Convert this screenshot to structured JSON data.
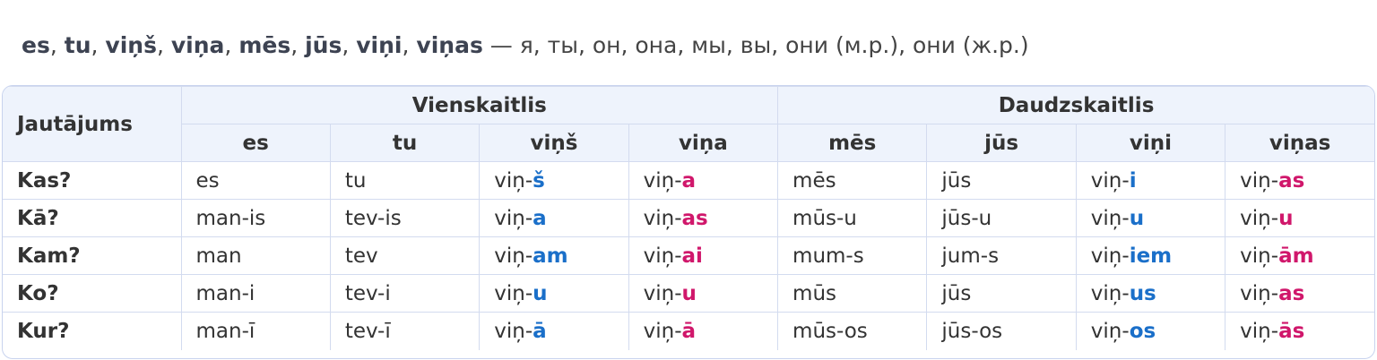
{
  "intro": {
    "pronouns": [
      "es",
      "tu",
      "viņš",
      "viņa",
      "mēs",
      "jūs",
      "viņi",
      "viņas"
    ],
    "separator": ",",
    "translation": "— я, ты, он, она, мы, вы, они (м.р.), они (ж.р.)"
  },
  "table": {
    "header": "Jautājums",
    "groups": [
      {
        "label": "Vienskaitlis",
        "span": 4
      },
      {
        "label": "Daudzskaitlis",
        "span": 4
      }
    ],
    "columns": [
      "es",
      "tu",
      "viņš",
      "viņa",
      "mēs",
      "jūs",
      "viņi",
      "viņas"
    ],
    "rows": [
      {
        "question": "Kas?",
        "cells": [
          "es",
          "tu",
          {
            "stem": "viņ-",
            "ending": "š",
            "color": "#1a6fc9"
          },
          {
            "stem": "viņ-",
            "ending": "a",
            "color": "#d0176b"
          },
          "mēs",
          "jūs",
          {
            "stem": "viņ-",
            "ending": "i",
            "color": "#1a6fc9"
          },
          {
            "stem": "viņ-",
            "ending": "as",
            "color": "#d0176b"
          }
        ]
      },
      {
        "question": "Kā?",
        "cells": [
          "man-is",
          "tev-is",
          {
            "stem": "viņ-",
            "ending": "a",
            "color": "#1a6fc9"
          },
          {
            "stem": "viņ-",
            "ending": "as",
            "color": "#d0176b"
          },
          "mūs-u",
          "jūs-u",
          {
            "stem": "viņ-",
            "ending": "u",
            "color": "#1a6fc9"
          },
          {
            "stem": "viņ-",
            "ending": "u",
            "color": "#d0176b"
          }
        ]
      },
      {
        "question": "Kam?",
        "cells": [
          "man",
          "tev",
          {
            "stem": "viņ-",
            "ending": "am",
            "color": "#1a6fc9"
          },
          {
            "stem": "viņ-",
            "ending": "ai",
            "color": "#d0176b"
          },
          "mum-s",
          "jum-s",
          {
            "stem": "viņ-",
            "ending": "iem",
            "color": "#1a6fc9"
          },
          {
            "stem": "viņ-",
            "ending": "ām",
            "color": "#d0176b"
          }
        ]
      },
      {
        "question": "Ko?",
        "cells": [
          "man-i",
          "tev-i",
          {
            "stem": "viņ-",
            "ending": "u",
            "color": "#1a6fc9"
          },
          {
            "stem": "viņ-",
            "ending": "u",
            "color": "#d0176b"
          },
          "mūs",
          "jūs",
          {
            "stem": "viņ-",
            "ending": "us",
            "color": "#1a6fc9"
          },
          {
            "stem": "viņ-",
            "ending": "as",
            "color": "#d0176b"
          }
        ]
      },
      {
        "question": "Kur?",
        "cells": [
          "man-ī",
          "tev-ī",
          {
            "stem": "viņ-",
            "ending": "ā",
            "color": "#1a6fc9"
          },
          {
            "stem": "viņ-",
            "ending": "ā",
            "color": "#d0176b"
          },
          "mūs-os",
          "jūs-os",
          {
            "stem": "viņ-",
            "ending": "os",
            "color": "#1a6fc9"
          },
          {
            "stem": "viņ-",
            "ending": "ās",
            "color": "#d0176b"
          }
        ]
      }
    ]
  }
}
